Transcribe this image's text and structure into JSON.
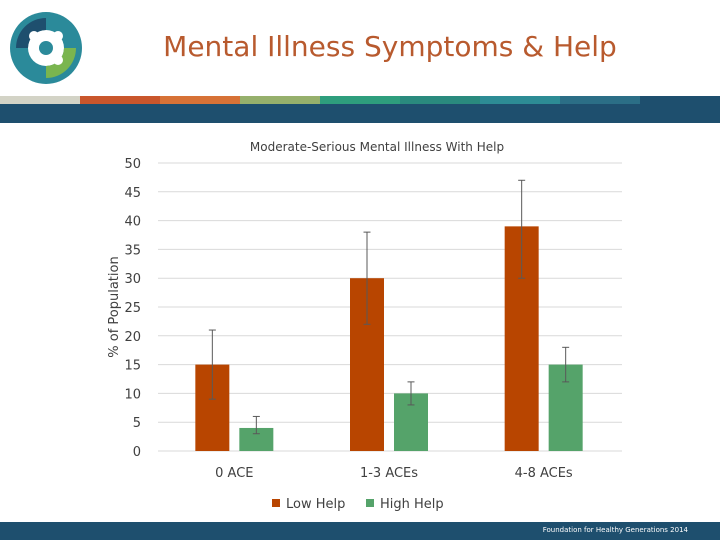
{
  "header": {
    "title": "Mental Illness Symptoms & Help",
    "stripe_colors": [
      "#d3d3c6",
      "#c9562c",
      "#d77236",
      "#96b06c",
      "#2e9e7d",
      "#2a8a7e",
      "#2d8c95",
      "#2b6e86",
      "#1e4f6e"
    ]
  },
  "footer": {
    "text": "Foundation for Healthy Generations 2014"
  },
  "colors": {
    "low_help": "#b84500",
    "high_help": "#55a36a",
    "grid": "#d9d9d9",
    "text": "#404040"
  },
  "chart_data": {
    "type": "bar",
    "title": "Moderate-Serious Mental Illness With Help",
    "xlabel": "",
    "ylabel": "% of Population",
    "ylim": [
      0,
      50
    ],
    "yticks": [
      0,
      5,
      10,
      15,
      20,
      25,
      30,
      35,
      40,
      45,
      50
    ],
    "categories": [
      "0 ACE",
      "1-3 ACEs",
      "4-8 ACEs"
    ],
    "series": [
      {
        "name": "Low Help",
        "color": "#b84500",
        "values": [
          15,
          30,
          39
        ],
        "err_low": [
          9,
          22,
          30
        ],
        "err_high": [
          21,
          38,
          47
        ]
      },
      {
        "name": "High Help",
        "color": "#55a36a",
        "values": [
          4,
          10,
          15
        ],
        "err_low": [
          3,
          8,
          12
        ],
        "err_high": [
          6,
          12,
          18
        ]
      }
    ],
    "grid": true,
    "legend_position": "bottom"
  }
}
